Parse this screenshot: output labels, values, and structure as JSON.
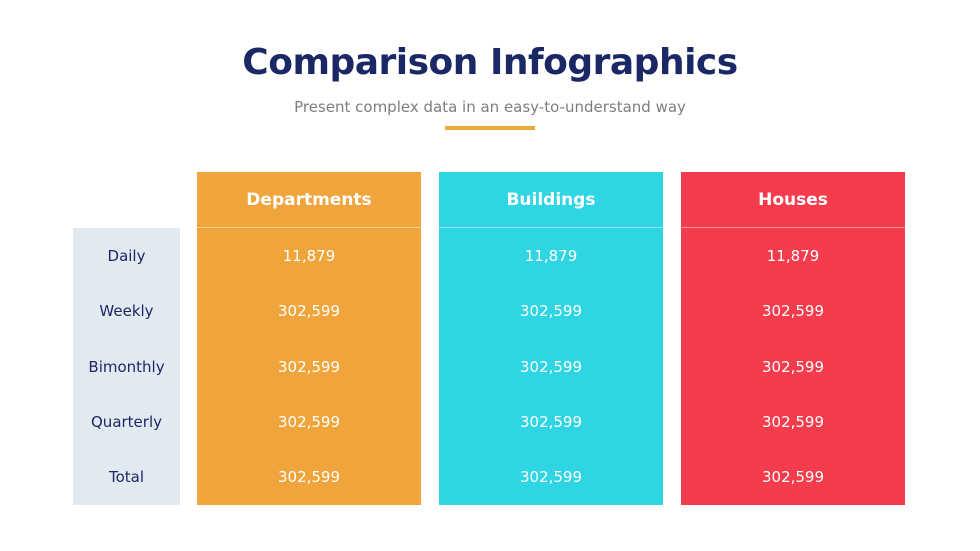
{
  "page": {
    "title": "Comparison Infographics",
    "subtitle": "Present complex data in an easy-to-understand way"
  },
  "colors": {
    "title_navy": "#1B2866",
    "subtitle_gray": "#7E7E7E",
    "divider_yellow": "#EBA93A",
    "sidebar_bg": "#E2EAF1",
    "sidebar_text": "#1B2866",
    "value_text": "#FFFFFF",
    "departments_orange": "#F0A43C",
    "buildings_cyan": "#2FD5E2",
    "houses_red": "#F53C4C"
  },
  "chart_data": {
    "type": "table",
    "title": "Comparison Infographics",
    "subtitle": "Present complex data in an easy-to-understand way",
    "row_labels": [
      "Daily",
      "Weekly",
      "Bimonthly",
      "Quarterly",
      "Total"
    ],
    "columns": [
      {
        "label": "Departments",
        "color": "#F0A43C",
        "values": [
          "11,879",
          "302,599",
          "302,599",
          "302,599",
          "302,599"
        ]
      },
      {
        "label": "Buildings",
        "color": "#2FD5E2",
        "values": [
          "11,879",
          "302,599",
          "302,599",
          "302,599",
          "302,599"
        ]
      },
      {
        "label": "Houses",
        "color": "#F53C4C",
        "values": [
          "11,879",
          "302,599",
          "302,599",
          "302,599",
          "302,599"
        ]
      }
    ],
    "legend_position": "none",
    "grid": false
  }
}
